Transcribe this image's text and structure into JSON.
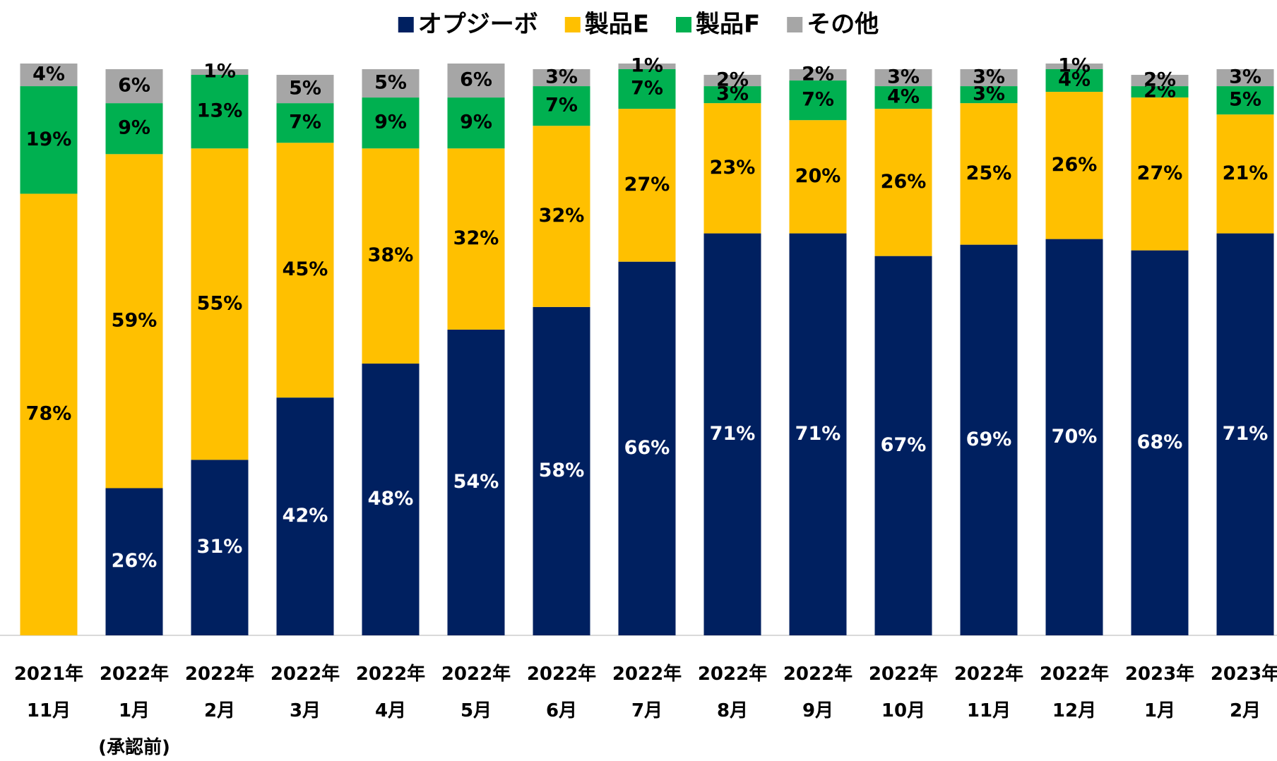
{
  "chart_data": {
    "type": "stacked_bar",
    "categories": [
      "2021年\n11月",
      "2022年\n1月\n(承認前)",
      "2022年\n2月",
      "2022年\n3月",
      "2022年\n4月",
      "2022年\n5月",
      "2022年\n6月",
      "2022年\n7月",
      "2022年\n8月",
      "2022年\n9月",
      "2022年\n10月",
      "2022年\n11月",
      "2022年\n12月",
      "2023年\n1月",
      "2023年\n2月"
    ],
    "series": [
      {
        "name": "オプジーボ",
        "color": "#002060",
        "values": [
          0,
          26,
          31,
          42,
          48,
          54,
          58,
          66,
          71,
          71,
          67,
          69,
          70,
          68,
          71
        ],
        "value_labels": [
          null,
          "26%",
          "31%",
          "42%",
          "48%",
          "54%",
          "58%",
          "66%",
          "71%",
          "71%",
          "67%",
          "69%",
          "70%",
          "68%",
          "71%"
        ]
      },
      {
        "name": "製品E",
        "color": "#ffc000",
        "values": [
          78,
          59,
          55,
          45,
          38,
          32,
          32,
          27,
          23,
          20,
          26,
          25,
          26,
          27,
          21
        ],
        "value_labels": [
          "78%",
          "59%",
          "55%",
          "45%",
          "38%",
          "32%",
          "32%",
          "27%",
          "23%",
          "20%",
          "26%",
          "25%",
          "26%",
          "27%",
          "21%"
        ]
      },
      {
        "name": "製品F",
        "color": "#00b050",
        "values": [
          19,
          9,
          13,
          7,
          9,
          9,
          7,
          7,
          3,
          7,
          4,
          3,
          4,
          2,
          5
        ],
        "value_labels": [
          "19%",
          "9%",
          "13%",
          "7%",
          "9%",
          "9%",
          "7%",
          "7%",
          "3%",
          "7%",
          "4%",
          "3%",
          "4%",
          "2%",
          "5%"
        ]
      },
      {
        "name": "その他",
        "color": "#a6a6a6",
        "values": [
          4,
          6,
          1,
          5,
          5,
          6,
          3,
          1,
          2,
          2,
          3,
          3,
          1,
          2,
          3
        ],
        "value_labels": [
          "4%",
          "6%",
          "1%",
          "5%",
          "5%",
          "6%",
          "3%",
          "1%",
          "2%",
          "2%",
          "3%",
          "3%",
          "1%",
          "2%",
          "3%"
        ]
      }
    ],
    "ylim": [
      0,
      100
    ],
    "legend": "top"
  }
}
